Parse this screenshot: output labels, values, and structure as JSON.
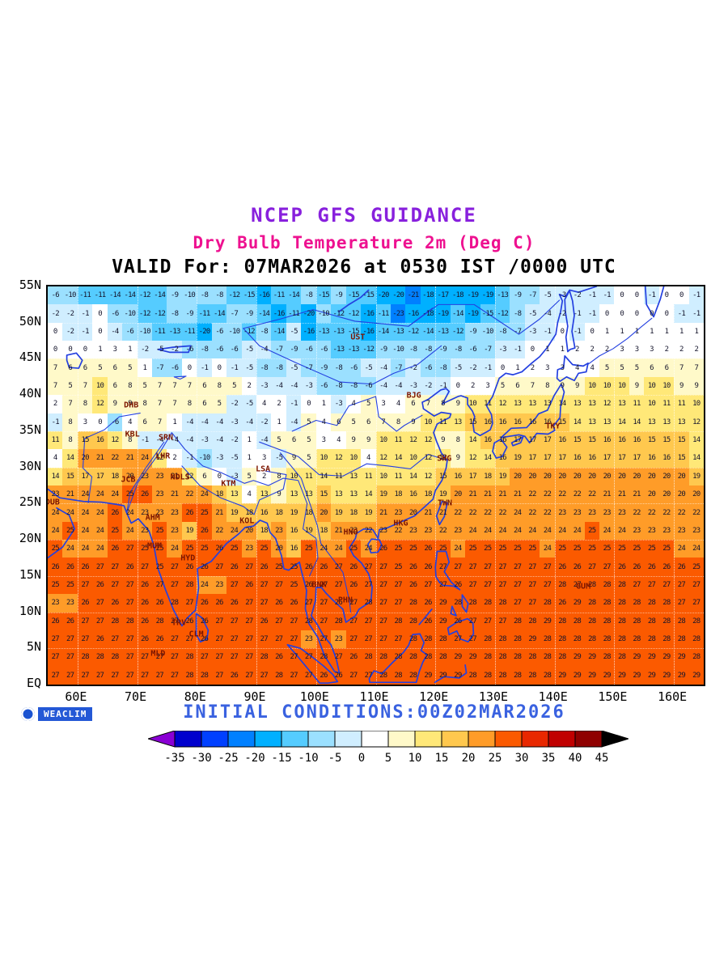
{
  "titles": {
    "line1": "NCEP GFS GUIDANCE",
    "line2": "Dry Bulb Temperature 2m (Deg C)",
    "line3": "VALID For: 07MAR2026 at 0530 IST /0000 UTC",
    "initial_conditions": "INITIAL CONDITIONS:00Z02MAR2026"
  },
  "logo": {
    "text": "WEACLIM"
  },
  "axes": {
    "lat_labels": [
      "55N",
      "50N",
      "45N",
      "40N",
      "35N",
      "30N",
      "25N",
      "20N",
      "15N",
      "10N",
      "5N",
      "EQ"
    ],
    "lat_values": [
      55,
      50,
      45,
      40,
      35,
      30,
      25,
      20,
      15,
      10,
      5,
      0
    ],
    "lon_labels": [
      "60E",
      "70E",
      "80E",
      "90E",
      "100E",
      "110E",
      "120E",
      "130E",
      "140E",
      "150E",
      "160E"
    ],
    "lon_values": [
      60,
      70,
      80,
      90,
      100,
      110,
      120,
      130,
      140,
      150,
      160
    ]
  },
  "colorbar": {
    "thresholds": [
      -35,
      -30,
      -25,
      -20,
      -15,
      -10,
      -5,
      0,
      5,
      10,
      15,
      20,
      25,
      30,
      35,
      40,
      45
    ],
    "tick_labels": [
      "-35",
      "-30",
      "-25",
      "-20",
      "-15",
      "-10",
      "-5",
      "0",
      "5",
      "10",
      "15",
      "20",
      "25",
      "30",
      "35",
      "40",
      "45"
    ],
    "colors": [
      "#8a00d4",
      "#0000cd",
      "#0040ff",
      "#0080ff",
      "#00b0ff",
      "#55ccff",
      "#9be0ff",
      "#d0eeff",
      "#ffffff",
      "#fff9c9",
      "#ffe878",
      "#ffc84e",
      "#ff9c28",
      "#fb5a00",
      "#e82800",
      "#c00000",
      "#8f0000",
      "#000000"
    ]
  },
  "chart_data": {
    "type": "heatmap",
    "title": "Dry Bulb Temperature 2m (Deg C)",
    "units": "Deg C",
    "lon_range": [
      55,
      165
    ],
    "lat_range": [
      0,
      55
    ],
    "grid_step": 2.5,
    "lons": [
      56.25,
      58.75,
      61.25,
      63.75,
      66.25,
      68.75,
      71.25,
      73.75,
      76.25,
      78.75,
      81.25,
      83.75,
      86.25,
      88.75,
      91.25,
      93.75,
      96.25,
      98.75,
      101.25,
      103.75,
      106.25,
      108.75,
      111.25,
      113.75,
      116.25,
      118.75,
      121.25,
      123.75,
      126.25,
      128.75,
      131.25,
      133.75,
      136.25,
      138.75,
      141.25,
      143.75,
      146.25,
      148.75,
      151.25,
      153.75,
      156.25,
      158.75,
      161.25,
      163.75
    ],
    "lats": [
      53.75,
      51.25,
      48.75,
      46.25,
      43.75,
      41.25,
      38.75,
      36.25,
      33.75,
      31.25,
      28.75,
      26.25,
      23.75,
      21.25,
      18.75,
      16.25,
      13.75,
      11.25,
      8.75,
      6.25,
      3.75,
      1.25
    ],
    "values": [
      [
        -6,
        -10,
        -11,
        -11,
        -14,
        -14,
        -12,
        -14,
        -9,
        -10,
        -8,
        -8,
        -12,
        -15,
        -16,
        -11,
        -14,
        -8,
        -15,
        -9,
        -15,
        -15,
        -20,
        -20,
        -21,
        -18,
        -17,
        -18,
        -19,
        -19,
        -13,
        -9,
        -7,
        -5,
        -3,
        -2,
        -1,
        -1,
        0,
        0,
        -1,
        0,
        0,
        -1
      ],
      [
        -2,
        -2,
        -1,
        0,
        -6,
        -10,
        -12,
        -12,
        -8,
        -9,
        -11,
        -14,
        -7,
        -9,
        -14,
        -16,
        -11,
        -20,
        -10,
        -12,
        -12,
        -16,
        -11,
        -23,
        -16,
        -18,
        -19,
        -14,
        -19,
        -15,
        -12,
        -8,
        -5,
        -4,
        -2,
        -1,
        -1,
        0,
        0,
        0,
        0,
        0,
        -1,
        -1
      ],
      [
        0,
        -2,
        -1,
        0,
        -4,
        -6,
        -10,
        -11,
        -13,
        -11,
        -20,
        -6,
        -10,
        -12,
        -8,
        -14,
        -5,
        -16,
        -13,
        -13,
        -15,
        -16,
        -14,
        -13,
        -12,
        -14,
        -13,
        -12,
        -9,
        -10,
        -8,
        -7,
        -3,
        -1,
        0,
        -1,
        0,
        1,
        1,
        1,
        1,
        1,
        1,
        1
      ],
      [
        0,
        0,
        0,
        1,
        3,
        1,
        -2,
        -5,
        -2,
        -6,
        -8,
        -6,
        -6,
        -5,
        -4,
        -7,
        -9,
        -6,
        -6,
        -13,
        -13,
        -12,
        -9,
        -10,
        -8,
        -8,
        -9,
        -8,
        -6,
        -7,
        -3,
        -1,
        0,
        1,
        1,
        2,
        2,
        2,
        3,
        3,
        3,
        2,
        2,
        2
      ],
      [
        7,
        6,
        6,
        5,
        6,
        5,
        1,
        -7,
        -6,
        0,
        -1,
        0,
        -1,
        -5,
        -8,
        -8,
        -5,
        -7,
        -9,
        -8,
        -6,
        -5,
        -4,
        -7,
        -2,
        -6,
        -8,
        -5,
        -2,
        -1,
        0,
        1,
        2,
        3,
        3,
        4,
        4,
        5,
        5,
        5,
        6,
        6,
        7,
        7
      ],
      [
        7,
        5,
        7,
        10,
        6,
        8,
        5,
        7,
        7,
        7,
        6,
        8,
        5,
        2,
        -3,
        -4,
        -4,
        -3,
        -6,
        -8,
        -8,
        -6,
        -4,
        -4,
        -3,
        -2,
        -1,
        0,
        2,
        3,
        5,
        6,
        7,
        8,
        9,
        9,
        10,
        10,
        10,
        9,
        10,
        10,
        9,
        9
      ],
      [
        2,
        7,
        8,
        12,
        9,
        9,
        8,
        7,
        7,
        8,
        6,
        5,
        -2,
        -5,
        4,
        2,
        -1,
        0,
        1,
        -3,
        4,
        5,
        3,
        4,
        6,
        7,
        8,
        9,
        10,
        11,
        12,
        13,
        13,
        13,
        14,
        13,
        13,
        12,
        13,
        11,
        10,
        11,
        11,
        10
      ],
      [
        -1,
        8,
        3,
        0,
        -6,
        4,
        6,
        7,
        1,
        -4,
        -4,
        -4,
        -3,
        -4,
        -2,
        1,
        -4,
        5,
        4,
        6,
        5,
        6,
        7,
        8,
        9,
        10,
        11,
        13,
        15,
        16,
        16,
        16,
        16,
        16,
        15,
        14,
        13,
        13,
        14,
        14,
        13,
        13,
        13,
        12
      ],
      [
        11,
        8,
        15,
        16,
        12,
        8,
        -1,
        -4,
        -4,
        -4,
        -3,
        -4,
        -2,
        1,
        -4,
        5,
        6,
        5,
        3,
        4,
        9,
        9,
        10,
        11,
        12,
        12,
        9,
        8,
        14,
        16,
        16,
        17,
        17,
        17,
        16,
        15,
        15,
        16,
        16,
        16,
        15,
        15,
        15,
        14
      ],
      [
        4,
        14,
        20,
        21,
        22,
        21,
        24,
        12,
        2,
        -1,
        -10,
        -3,
        -5,
        1,
        3,
        -5,
        9,
        5,
        10,
        12,
        10,
        4,
        12,
        14,
        10,
        12,
        12,
        9,
        12,
        14,
        16,
        19,
        17,
        17,
        17,
        16,
        16,
        17,
        17,
        17,
        16,
        16,
        15,
        14
      ],
      [
        14,
        15,
        17,
        17,
        18,
        20,
        23,
        23,
        21,
        12,
        6,
        0,
        -3,
        5,
        2,
        8,
        10,
        11,
        14,
        11,
        13,
        11,
        10,
        11,
        14,
        12,
        15,
        16,
        17,
        18,
        19,
        20,
        20,
        20,
        20,
        20,
        20,
        20,
        20,
        20,
        20,
        20,
        20,
        19
      ],
      [
        23,
        21,
        24,
        24,
        24,
        25,
        26,
        23,
        21,
        22,
        24,
        18,
        13,
        4,
        13,
        9,
        13,
        13,
        15,
        13,
        13,
        14,
        19,
        18,
        16,
        18,
        19,
        20,
        21,
        21,
        21,
        21,
        22,
        22,
        22,
        22,
        22,
        21,
        21,
        21,
        20,
        20,
        20,
        20
      ],
      [
        24,
        24,
        24,
        24,
        26,
        24,
        23,
        23,
        23,
        26,
        25,
        21,
        19,
        18,
        16,
        18,
        19,
        18,
        20,
        19,
        18,
        19,
        21,
        23,
        20,
        21,
        21,
        22,
        22,
        22,
        22,
        24,
        22,
        22,
        23,
        23,
        23,
        23,
        23,
        22,
        22,
        22,
        22,
        22
      ],
      [
        24,
        25,
        24,
        24,
        25,
        24,
        23,
        25,
        23,
        19,
        26,
        22,
        24,
        20,
        18,
        23,
        16,
        19,
        18,
        21,
        23,
        22,
        23,
        22,
        23,
        23,
        22,
        23,
        24,
        24,
        24,
        24,
        24,
        24,
        24,
        24,
        25,
        24,
        24,
        23,
        23,
        23,
        23,
        23
      ],
      [
        25,
        24,
        24,
        24,
        26,
        27,
        25,
        25,
        24,
        25,
        25,
        26,
        25,
        23,
        25,
        20,
        16,
        25,
        24,
        24,
        25,
        24,
        26,
        25,
        25,
        26,
        25,
        24,
        25,
        25,
        25,
        25,
        25,
        24,
        25,
        25,
        25,
        25,
        25,
        25,
        25,
        25,
        24,
        24
      ],
      [
        26,
        26,
        26,
        27,
        27,
        26,
        27,
        25,
        27,
        26,
        26,
        27,
        26,
        27,
        26,
        25,
        25,
        26,
        26,
        27,
        26,
        27,
        27,
        25,
        26,
        26,
        27,
        27,
        27,
        27,
        27,
        27,
        27,
        27,
        26,
        26,
        27,
        27,
        26,
        26,
        26,
        26,
        26,
        25
      ],
      [
        25,
        25,
        27,
        26,
        27,
        27,
        26,
        27,
        27,
        28,
        24,
        23,
        27,
        26,
        27,
        27,
        25,
        26,
        27,
        27,
        26,
        27,
        27,
        27,
        26,
        27,
        27,
        26,
        27,
        27,
        27,
        27,
        27,
        27,
        28,
        27,
        28,
        28,
        28,
        27,
        27,
        27,
        27,
        27
      ],
      [
        23,
        23,
        26,
        27,
        26,
        27,
        26,
        26,
        28,
        27,
        26,
        26,
        26,
        27,
        27,
        26,
        26,
        27,
        27,
        26,
        27,
        28,
        27,
        27,
        28,
        26,
        29,
        28,
        28,
        28,
        28,
        27,
        27,
        28,
        26,
        29,
        28,
        28,
        28,
        28,
        28,
        28,
        27,
        27
      ],
      [
        26,
        26,
        27,
        27,
        28,
        28,
        26,
        28,
        27,
        26,
        26,
        27,
        27,
        27,
        26,
        27,
        27,
        28,
        27,
        28,
        27,
        27,
        27,
        28,
        28,
        26,
        29,
        26,
        27,
        27,
        27,
        28,
        28,
        29,
        28,
        28,
        28,
        28,
        28,
        28,
        28,
        28,
        28,
        28
      ],
      [
        27,
        27,
        27,
        26,
        27,
        27,
        26,
        26,
        27,
        27,
        26,
        27,
        27,
        27,
        27,
        27,
        27,
        23,
        27,
        23,
        27,
        27,
        27,
        27,
        28,
        28,
        28,
        27,
        27,
        28,
        28,
        28,
        29,
        28,
        28,
        28,
        28,
        28,
        28,
        28,
        28,
        28,
        28,
        28
      ],
      [
        27,
        27,
        28,
        28,
        28,
        27,
        27,
        27,
        27,
        28,
        27,
        27,
        27,
        27,
        28,
        26,
        27,
        27,
        28,
        27,
        26,
        28,
        28,
        28,
        28,
        28,
        28,
        29,
        29,
        28,
        28,
        28,
        28,
        28,
        28,
        29,
        29,
        28,
        28,
        29,
        29,
        29,
        29,
        28
      ],
      [
        27,
        27,
        27,
        27,
        27,
        27,
        27,
        27,
        27,
        28,
        28,
        27,
        26,
        27,
        27,
        28,
        27,
        27,
        26,
        26,
        27,
        27,
        28,
        28,
        28,
        29,
        29,
        29,
        28,
        28,
        28,
        28,
        28,
        28,
        29,
        29,
        29,
        29,
        29,
        29,
        29,
        29,
        29,
        29
      ]
    ],
    "stations": [
      {
        "label": "DHB",
        "lon": 69.0,
        "lat": 38.6
      },
      {
        "label": "KBL",
        "lon": 69.2,
        "lat": 34.5
      },
      {
        "label": "SRN",
        "lon": 74.8,
        "lat": 34.1
      },
      {
        "label": "LHR",
        "lon": 74.3,
        "lat": 31.5
      },
      {
        "label": "JCB",
        "lon": 68.5,
        "lat": 28.3
      },
      {
        "label": "NDLS",
        "lon": 77.2,
        "lat": 28.6
      },
      {
        "label": "KTM",
        "lon": 85.3,
        "lat": 27.7
      },
      {
        "label": "LSA",
        "lon": 91.1,
        "lat": 29.7
      },
      {
        "label": "DUB",
        "lon": 55.8,
        "lat": 25.2
      },
      {
        "label": "AHM",
        "lon": 72.6,
        "lat": 23.0
      },
      {
        "label": "MUM",
        "lon": 72.9,
        "lat": 19.1
      },
      {
        "label": "KOL",
        "lon": 88.4,
        "lat": 22.6
      },
      {
        "label": "HYD",
        "lon": 78.5,
        "lat": 17.4
      },
      {
        "label": "TRV",
        "lon": 77.0,
        "lat": 8.5
      },
      {
        "label": "CLM",
        "lon": 79.9,
        "lat": 6.9
      },
      {
        "label": "MLD",
        "lon": 73.5,
        "lat": 4.2
      },
      {
        "label": "BNK",
        "lon": 100.5,
        "lat": 13.8
      },
      {
        "label": "PHN",
        "lon": 104.9,
        "lat": 11.6
      },
      {
        "label": "HNO",
        "lon": 105.8,
        "lat": 21.0
      },
      {
        "label": "UST",
        "lon": 107.0,
        "lat": 48.0
      },
      {
        "label": "BJG",
        "lon": 116.4,
        "lat": 39.9
      },
      {
        "label": "SHG",
        "lon": 121.5,
        "lat": 31.2
      },
      {
        "label": "TWN",
        "lon": 121.6,
        "lat": 25.0
      },
      {
        "label": "HKG",
        "lon": 114.2,
        "lat": 22.3
      },
      {
        "label": "TKY",
        "lon": 139.7,
        "lat": 35.7
      },
      {
        "label": "GUM",
        "lon": 144.8,
        "lat": 13.5
      }
    ]
  }
}
